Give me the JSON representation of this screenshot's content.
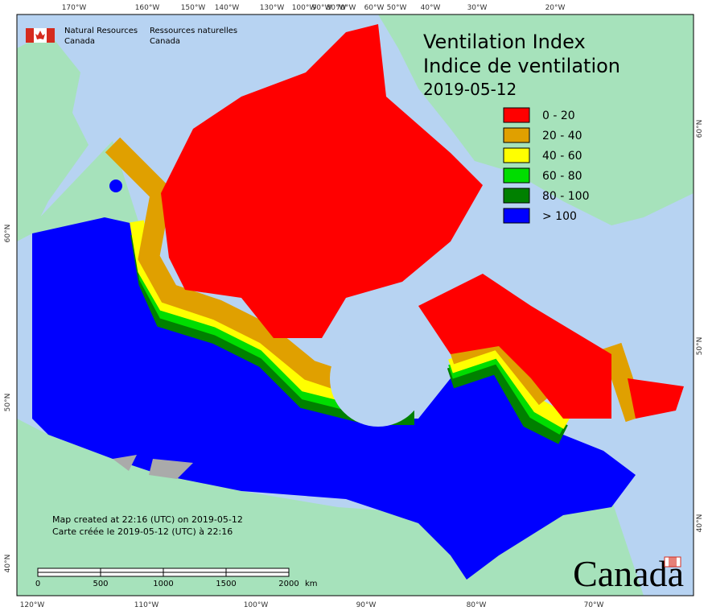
{
  "header": {
    "agency_en": [
      "Natural Resources",
      "Canada"
    ],
    "agency_fr": [
      "Ressources naturelles",
      "Canada"
    ]
  },
  "title": {
    "line_en": "Ventilation Index",
    "line_fr": "Indice de ventilation",
    "date": "2019-05-12"
  },
  "legend": [
    {
      "label": "0 - 20",
      "color": "#ff0000"
    },
    {
      "label": "20 - 40",
      "color": "#e0a000"
    },
    {
      "label": "40 - 60",
      "color": "#ffff00"
    },
    {
      "label": "60 - 80",
      "color": "#00dd00"
    },
    {
      "label": "80 - 100",
      "color": "#008000"
    },
    {
      "label": "> 100",
      "color": "#0000ff"
    }
  ],
  "graticule": {
    "top": [
      "170°W",
      "160°W",
      "150°W",
      "140°W",
      "130°W",
      "100°W",
      "90°W",
      "80°W",
      "70°W",
      "60°W",
      "50°W",
      "40°W",
      "30°W",
      "20°W"
    ],
    "bottom": [
      "120°W",
      "110°W",
      "100°W",
      "90°W",
      "80°W",
      "70°W"
    ],
    "left": [
      "60°N",
      "50°N",
      "40°N"
    ],
    "right": [
      "60°N",
      "50°N",
      "40°N"
    ]
  },
  "notes": [
    "Map created at 22:16 (UTC) on 2019-05-12",
    "Carte créée le 2019-05-12 (UTC) à 22:16"
  ],
  "scale_bar": {
    "labels": [
      "0",
      "500",
      "1000",
      "1500",
      "2000"
    ],
    "unit": "km"
  },
  "wordmark": "Canada"
}
